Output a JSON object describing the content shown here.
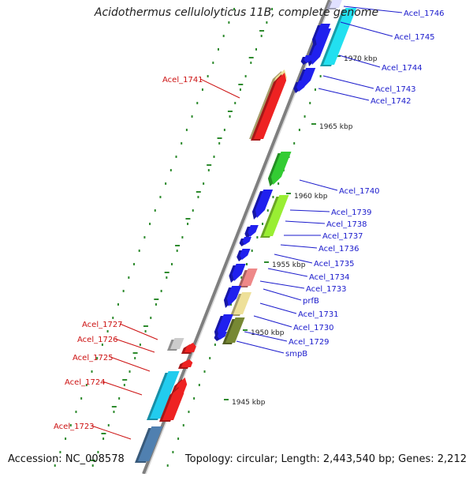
{
  "title": "Acidothermus cellulolyticus 11B, complete genome",
  "footer": {
    "accession": "Accession: NC_008578",
    "info": "Topology: circular; Length: 2,443,540 bp; Genes: 2,212"
  },
  "colors": {
    "backbone": "#7f7f7f",
    "tick": "#2e8b2e",
    "right_label": "#1a1acc",
    "left_label": "#cc1111"
  },
  "kbp_labels": [
    "1970 kbp",
    "1965 kbp",
    "1960 kbp",
    "1955 kbp",
    "1950 kbp",
    "1945 kbp"
  ],
  "right_genes": [
    {
      "label": "Acel_1746",
      "color": "#e0e0ff"
    },
    {
      "label": "Acel_1745",
      "color": "#22e0f0"
    },
    {
      "label": "Acel_1744",
      "color": "#2020ee"
    },
    {
      "label": "Acel_1743",
      "color": "#2020ee"
    },
    {
      "label": "Acel_1742",
      "color": "#2020ee"
    },
    {
      "label": "Acel_1740",
      "color": "#33cc33"
    },
    {
      "label": "Acel_1739",
      "color": "#99ee33"
    },
    {
      "label": "Acel_1738",
      "color": "#2020ee"
    },
    {
      "label": "Acel_1737",
      "color": "#2020ee"
    },
    {
      "label": "Acel_1736",
      "color": "#2020ee"
    },
    {
      "label": "Acel_1735",
      "color": "#2020ee"
    },
    {
      "label": "Acel_1734",
      "color": "#2020ee"
    },
    {
      "label": "Acel_1733",
      "color": "#ee8888"
    },
    {
      "label": "prfB",
      "color": "#2020ee"
    },
    {
      "label": "Acel_1731",
      "color": "#eee099"
    },
    {
      "label": "Acel_1730",
      "color": "#2020ee"
    },
    {
      "label": "Acel_1729",
      "color": "#778833"
    },
    {
      "label": "smpB",
      "color": "#2020ee"
    }
  ],
  "left_genes": [
    {
      "label": "Acel_1741",
      "color": "#eee099"
    },
    {
      "label": "Acel_1727",
      "color": "#cccccc"
    },
    {
      "label": "Acel_1726",
      "color": "#ee2222"
    },
    {
      "label": "Acel_1725",
      "color": "#ee2222"
    },
    {
      "label": "Acel_1724",
      "color": "#22ccee"
    },
    {
      "label": "Acel_1723",
      "color": "#5080b0"
    }
  ],
  "other_genes": [
    {
      "color": "#ee2222"
    },
    {
      "color": "#ee2222"
    },
    {
      "color": "#ee2222"
    },
    {
      "color": "#2020ee"
    },
    {
      "color": "#2020ee"
    }
  ]
}
